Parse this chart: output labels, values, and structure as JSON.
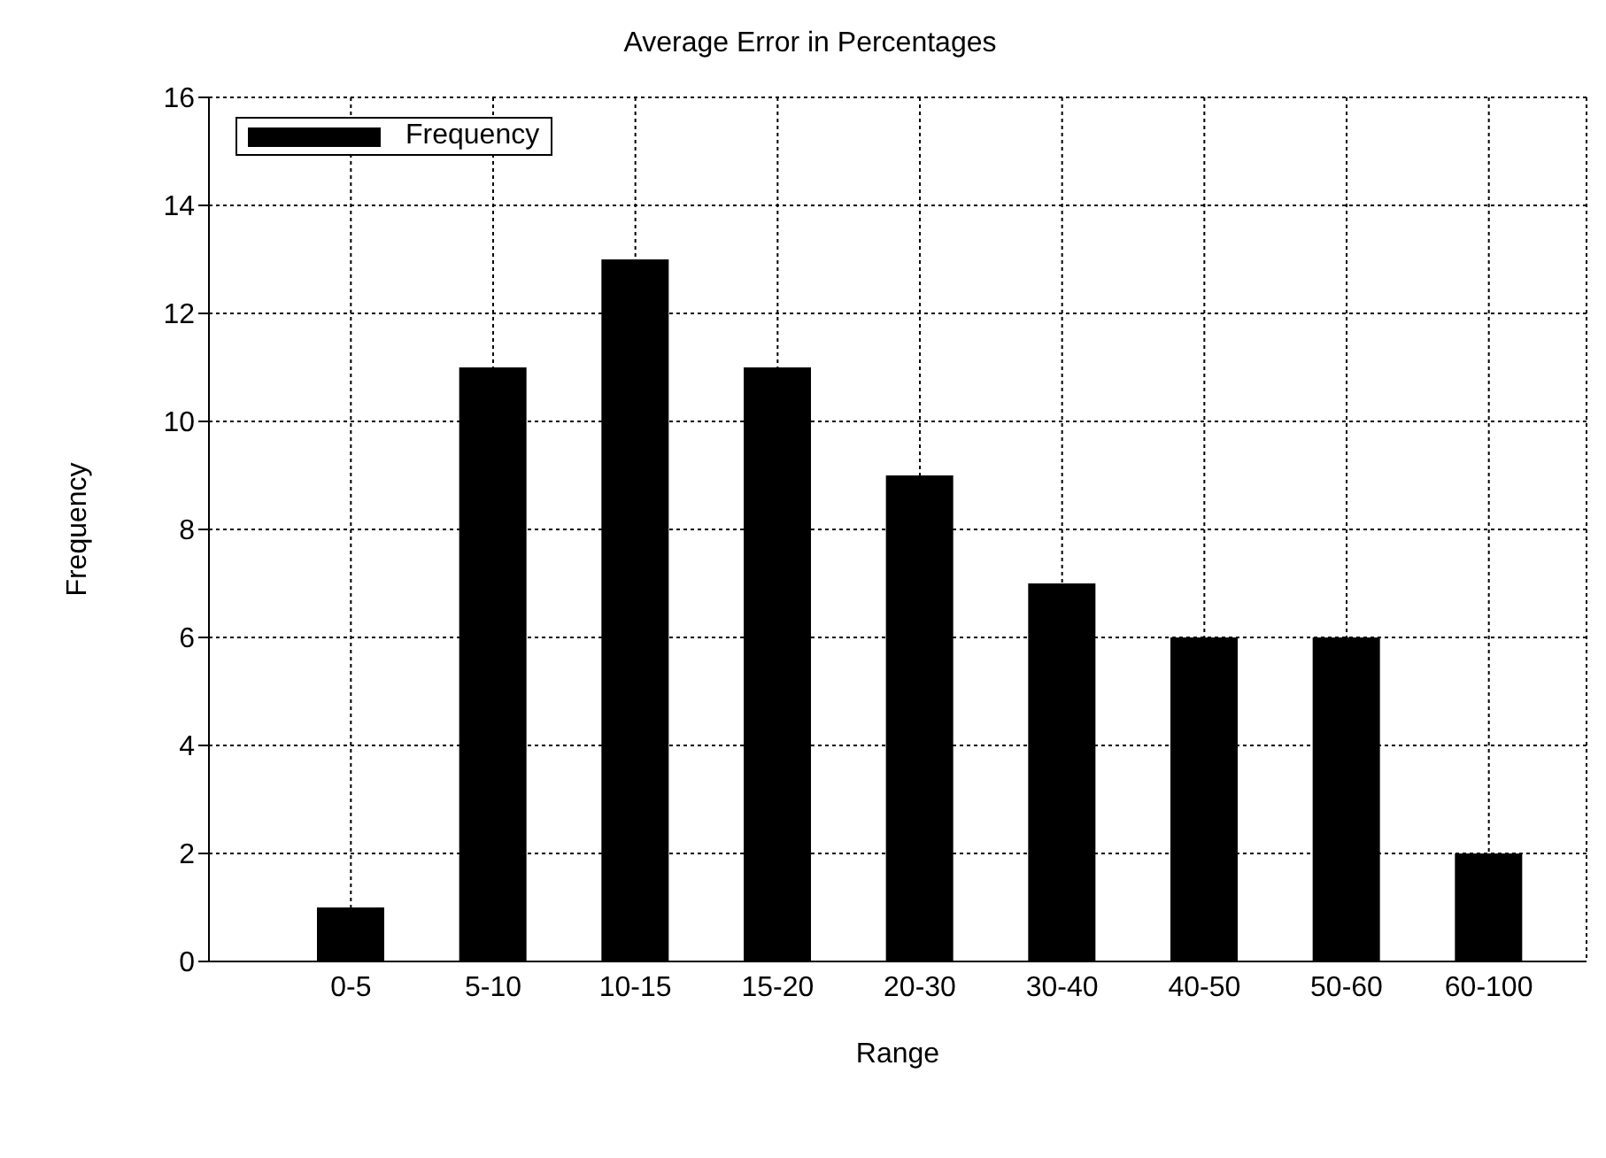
{
  "chart_data": {
    "type": "bar",
    "title": "Average Error in Percentages",
    "xlabel": "Range",
    "ylabel": "Frequency",
    "categories": [
      "0-5",
      "5-10",
      "10-15",
      "15-20",
      "20-30",
      "30-40",
      "40-50",
      "50-60",
      "60-100"
    ],
    "series": [
      {
        "name": "Frequency",
        "color": "#000000",
        "values": [
          1,
          11,
          13,
          11,
          9,
          7,
          6,
          6,
          2
        ]
      }
    ],
    "ylim": [
      0,
      16
    ],
    "yticks": [
      0,
      2,
      4,
      6,
      8,
      10,
      12,
      14,
      16
    ],
    "grid": true,
    "legend": "top left"
  }
}
